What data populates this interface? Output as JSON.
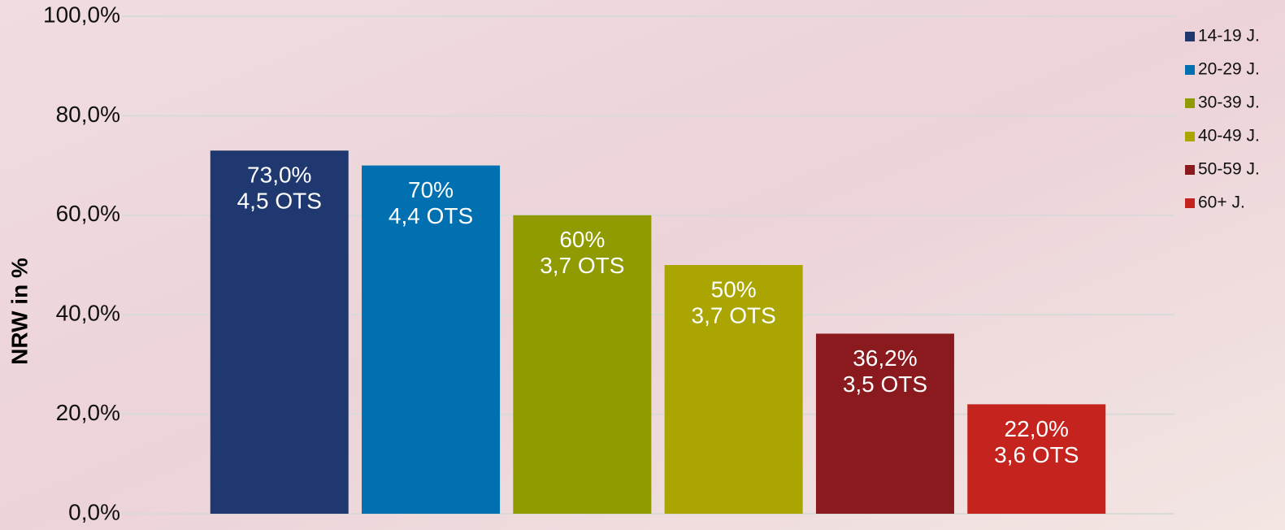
{
  "chart_data": {
    "type": "bar",
    "y_label": "NRW in %",
    "categories": [
      null
    ],
    "series": [
      {
        "name": "14-19 J.",
        "color": "#1f3870",
        "values": [
          73.0
        ],
        "value_labels": [
          "73,0%"
        ],
        "ots_labels": [
          "4,5 OTS"
        ]
      },
      {
        "name": "20-29 J.",
        "color": "#0070b0",
        "values": [
          70
        ],
        "value_labels": [
          "70%"
        ],
        "ots_labels": [
          "4,4 OTS"
        ]
      },
      {
        "name": "30-39 J.",
        "color": "#8f9b00",
        "values": [
          60
        ],
        "value_labels": [
          "60%"
        ],
        "ots_labels": [
          "3,7 OTS"
        ]
      },
      {
        "name": "40-49 J.",
        "color": "#aaa500",
        "values": [
          50
        ],
        "value_labels": [
          "50%"
        ],
        "ots_labels": [
          "3,7 OTS"
        ]
      },
      {
        "name": "50-59 J.",
        "color": "#8b1a1f",
        "values": [
          36.2
        ],
        "value_labels": [
          "36,2%"
        ],
        "ots_labels": [
          "3,5 OTS"
        ]
      },
      {
        "name": "60+ J.",
        "color": "#c4241d",
        "values": [
          22.0
        ],
        "value_labels": [
          "22,0%"
        ],
        "ots_labels": [
          "3,6 OTS"
        ]
      }
    ],
    "ylim": [
      0,
      100
    ],
    "yticks": [
      {
        "value": 0,
        "label": "0,0%"
      },
      {
        "value": 20,
        "label": "20,0%"
      },
      {
        "value": 40,
        "label": "40,0%"
      },
      {
        "value": 60,
        "label": "60,0%"
      },
      {
        "value": 80,
        "label": "80,0%"
      },
      {
        "value": 100,
        "label": "100,0%"
      }
    ],
    "grid": true,
    "legend": "top-right"
  }
}
